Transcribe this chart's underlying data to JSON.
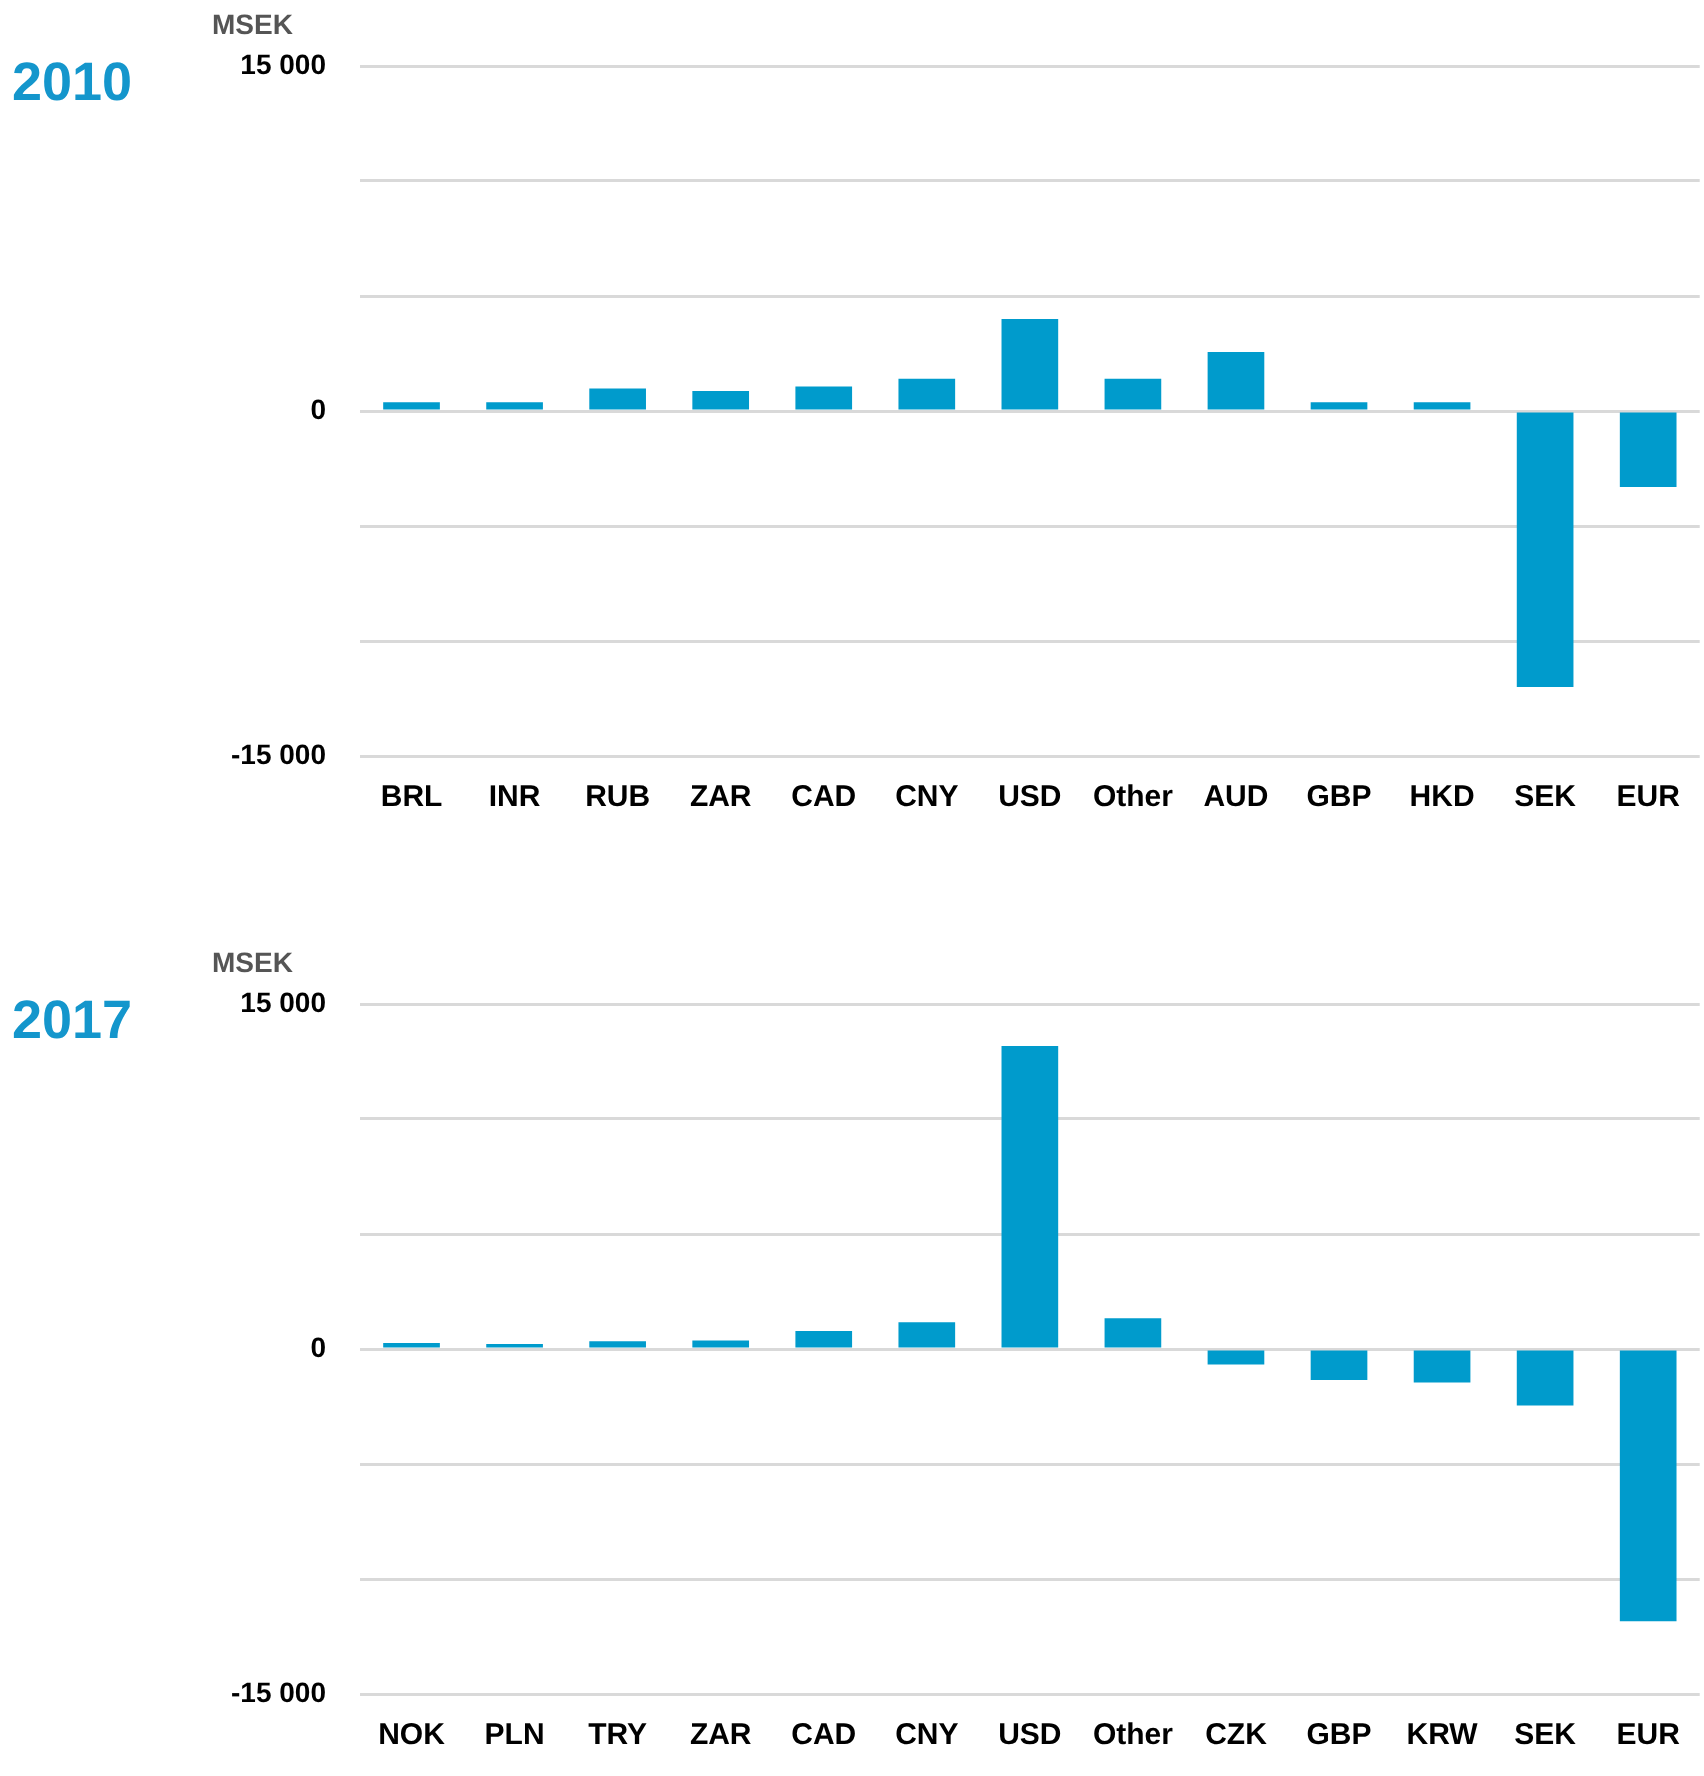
{
  "chart_data": [
    {
      "type": "bar",
      "title": "2010",
      "ylabel": "MSEK",
      "categories": [
        "BRL",
        "INR",
        "RUB",
        "ZAR",
        "CAD",
        "CNY",
        "USD",
        "Other",
        "AUD",
        "GBP",
        "HKD",
        "SEK",
        "EUR"
      ],
      "values": [
        380,
        380,
        980,
        870,
        1060,
        1400,
        4000,
        1400,
        2570,
        380,
        380,
        -12000,
        -3300
      ],
      "color": "#009bcc",
      "ylim": [
        -15000,
        15000
      ],
      "yticks": [
        {
          "value": -15000,
          "label": "-15 000"
        },
        {
          "value": -10000,
          "label": null
        },
        {
          "value": -5000,
          "label": null
        },
        0,
        {
          "value": 5000,
          "label": null
        },
        {
          "value": 10000,
          "label": null
        },
        {
          "value": 15000,
          "label": "15 000"
        }
      ],
      "grid": "y",
      "legend": false
    },
    {
      "type": "bar",
      "title": "2017",
      "ylabel": "MSEK",
      "categories": [
        "NOK",
        "PLN",
        "TRY",
        "ZAR",
        "CAD",
        "CNY",
        "USD",
        "Other",
        "CZK",
        "GBP",
        "KRW",
        "SEK",
        "EUR"
      ],
      "values": [
        260,
        220,
        340,
        370,
        780,
        1160,
        13170,
        1340,
        -670,
        -1350,
        -1460,
        -2460,
        -11840
      ],
      "color": "#009bcc",
      "ylim": [
        -15000,
        15000
      ],
      "yticks": [
        {
          "value": -15000,
          "label": "-15 000"
        },
        {
          "value": -10000,
          "label": null
        },
        {
          "value": -5000,
          "label": null
        },
        0,
        {
          "value": 5000,
          "label": null
        },
        {
          "value": 10000,
          "label": null
        },
        {
          "value": 15000,
          "label": "15 000"
        }
      ],
      "grid": "y",
      "legend": false
    }
  ]
}
